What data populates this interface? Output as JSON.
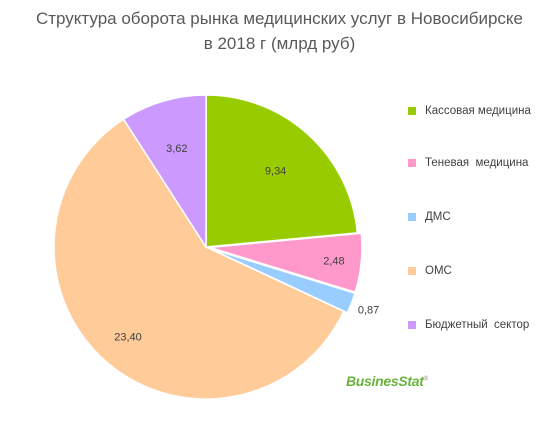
{
  "chart_data": {
    "type": "pie",
    "title_line1": "Структура оборота рынка медицинских услуг в Новосибирске",
    "title_line2": "в 2018 г (млрд руб)",
    "slices": [
      {
        "name": "Кассовая медицина",
        "value": 9.34,
        "label": "9,34",
        "color": "#99cc00"
      },
      {
        "name": "Теневая  медицина",
        "value": 2.48,
        "label": "2,48",
        "color": "#ff99cc"
      },
      {
        "name": "ДМС",
        "value": 0.87,
        "label": "0,87",
        "color": "#99ccff"
      },
      {
        "name": "ОМС",
        "value": 23.4,
        "label": "23,40",
        "color": "#ffcc99"
      },
      {
        "name": "Бюджетный  сектор",
        "value": 3.62,
        "label": "3,62",
        "color": "#cc99ff"
      }
    ],
    "legend_position": "right"
  },
  "brand": {
    "name": "BusinesStat",
    "mark": "®"
  }
}
